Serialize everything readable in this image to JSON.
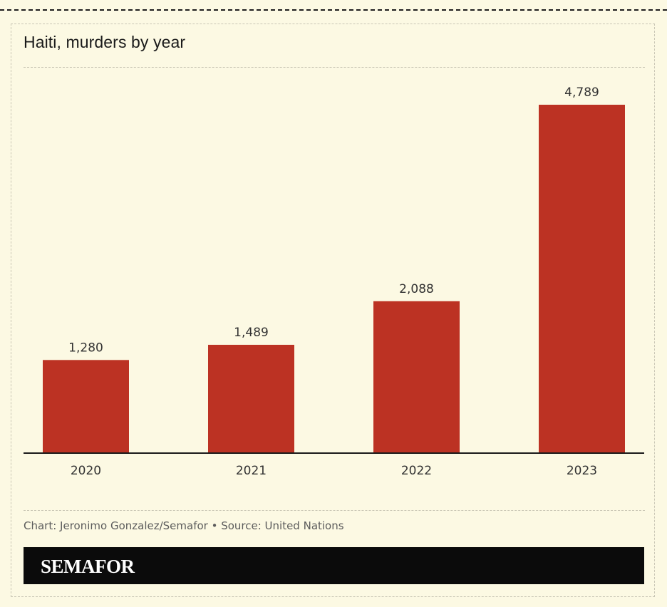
{
  "chart_data": {
    "type": "bar",
    "title": "Haiti, murders by year",
    "categories": [
      "2020",
      "2021",
      "2022",
      "2023"
    ],
    "values": [
      1280,
      1489,
      2088,
      4789
    ],
    "value_labels": [
      "1,280",
      "1,489",
      "2,088",
      "4,789"
    ],
    "xlabel": "",
    "ylabel": "",
    "ylim": [
      0,
      4789
    ],
    "grid": false,
    "colors": {
      "bar": "#BC3223",
      "axis": "#1a1a1a",
      "label": "#333333"
    }
  },
  "footer": {
    "credit": "Chart: Jeronimo Gonzalez/Semafor • Source: United Nations",
    "brand": "SEMAFOR"
  }
}
